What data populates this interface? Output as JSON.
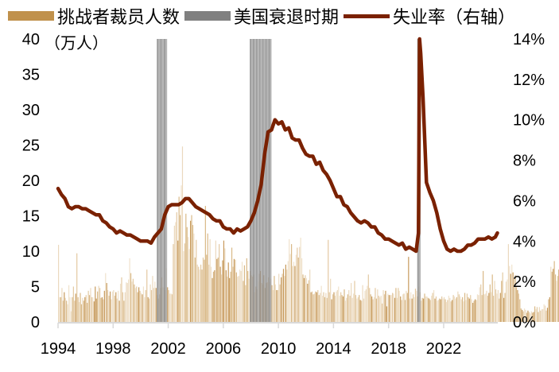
{
  "chart_data": {
    "type": "bar+line",
    "title": "",
    "legend": [
      {
        "label": "挑战者裁员人数",
        "kind": "bar",
        "color": "#C0914C"
      },
      {
        "label": "美国衰退时期",
        "kind": "band",
        "color": "#808080"
      },
      {
        "label": "失业率（右轴）",
        "kind": "line",
        "color": "#7A2100"
      }
    ],
    "left_axis": {
      "unit_label": "（万人）",
      "ticks": [
        0,
        5,
        10,
        15,
        20,
        25,
        30,
        35,
        40
      ],
      "ylim": [
        0,
        40
      ]
    },
    "right_axis": {
      "ticks": [
        "0%",
        "2%",
        "4%",
        "6%",
        "8%",
        "10%",
        "12%",
        "14%"
      ],
      "ylim": [
        0,
        14
      ]
    },
    "x_axis": {
      "ticks": [
        "1994",
        "1998",
        "2002",
        "2006",
        "2010",
        "2014",
        "2018",
        "2022"
      ],
      "range": [
        1994.0,
        2025.9
      ]
    },
    "recessions": [
      {
        "start": 2001.17,
        "end": 2001.92
      },
      {
        "start": 2007.92,
        "end": 2009.5
      },
      {
        "start": 2020.08,
        "end": 2020.33
      }
    ],
    "unemployment_rate": {
      "x": [
        1994.0,
        1994.25,
        1994.5,
        1994.75,
        1995.0,
        1995.25,
        1995.5,
        1995.75,
        1996.0,
        1996.25,
        1996.5,
        1996.75,
        1997.0,
        1997.25,
        1997.5,
        1997.75,
        1998.0,
        1998.25,
        1998.5,
        1998.75,
        1999.0,
        1999.25,
        1999.5,
        1999.75,
        2000.0,
        2000.25,
        2000.5,
        2000.75,
        2001.0,
        2001.25,
        2001.5,
        2001.75,
        2002.0,
        2002.25,
        2002.5,
        2002.75,
        2003.0,
        2003.25,
        2003.5,
        2003.75,
        2004.0,
        2004.25,
        2004.5,
        2004.75,
        2005.0,
        2005.25,
        2005.5,
        2005.75,
        2006.0,
        2006.25,
        2006.5,
        2006.75,
        2007.0,
        2007.25,
        2007.5,
        2007.75,
        2008.0,
        2008.25,
        2008.5,
        2008.75,
        2009.0,
        2009.25,
        2009.5,
        2009.75,
        2010.0,
        2010.25,
        2010.5,
        2010.75,
        2011.0,
        2011.25,
        2011.5,
        2011.75,
        2012.0,
        2012.25,
        2012.5,
        2012.75,
        2013.0,
        2013.25,
        2013.5,
        2013.75,
        2014.0,
        2014.25,
        2014.5,
        2014.75,
        2015.0,
        2015.25,
        2015.5,
        2015.75,
        2016.0,
        2016.25,
        2016.5,
        2016.75,
        2017.0,
        2017.25,
        2017.5,
        2017.75,
        2018.0,
        2018.25,
        2018.5,
        2018.75,
        2019.0,
        2019.25,
        2019.5,
        2019.75,
        2020.0,
        2020.17,
        2020.25,
        2020.33,
        2020.5,
        2020.75,
        2021.0,
        2021.25,
        2021.5,
        2021.75,
        2022.0,
        2022.25,
        2022.5,
        2022.75,
        2023.0,
        2023.25,
        2023.5,
        2023.75,
        2024.0,
        2024.25,
        2024.5,
        2024.75,
        2025.0,
        2025.25,
        2025.5,
        2025.75,
        2025.9
      ],
      "y": [
        6.6,
        6.3,
        6.1,
        5.7,
        5.6,
        5.7,
        5.7,
        5.6,
        5.6,
        5.5,
        5.4,
        5.3,
        5.3,
        5.0,
        4.9,
        4.7,
        4.6,
        4.4,
        4.5,
        4.4,
        4.3,
        4.3,
        4.2,
        4.1,
        4.0,
        4.0,
        4.0,
        3.9,
        4.2,
        4.4,
        4.6,
        5.3,
        5.7,
        5.8,
        5.8,
        5.8,
        5.9,
        6.1,
        6.1,
        5.9,
        5.7,
        5.6,
        5.5,
        5.4,
        5.3,
        5.1,
        5.0,
        5.0,
        4.7,
        4.6,
        4.6,
        4.4,
        4.6,
        4.5,
        4.6,
        4.7,
        5.0,
        5.4,
        6.0,
        6.8,
        8.3,
        9.4,
        9.5,
        10.0,
        9.8,
        9.9,
        9.5,
        9.6,
        9.1,
        9.0,
        9.0,
        8.6,
        8.3,
        8.2,
        8.2,
        7.8,
        7.9,
        7.5,
        7.3,
        7.0,
        6.6,
        6.2,
        6.2,
        5.8,
        5.7,
        5.4,
        5.2,
        5.0,
        4.9,
        5.0,
        4.9,
        4.7,
        4.7,
        4.4,
        4.3,
        4.1,
        4.1,
        4.0,
        3.9,
        3.8,
        3.9,
        3.6,
        3.7,
        3.6,
        3.5,
        4.4,
        14.7,
        13.3,
        11.1,
        6.9,
        6.4,
        6.0,
        5.4,
        4.6,
        4.0,
        3.6,
        3.5,
        3.6,
        3.5,
        3.5,
        3.6,
        3.8,
        3.8,
        3.9,
        4.1,
        4.1,
        4.1,
        4.2,
        4.1,
        4.2,
        4.4
      ]
    },
    "layoffs_monthly_10k": [
      10.9,
      3.5,
      3.5,
      4.8,
      3.0,
      4.2,
      3.4,
      3.0,
      2.5,
      5.2,
      3.5,
      1.5,
      3.5,
      5.0,
      3.0,
      4.0,
      9.7,
      3.5,
      2.8,
      4.1,
      2.5,
      3.4,
      3.0,
      3.5,
      3.8,
      2.7,
      4.4,
      3.8,
      4.8,
      3.5,
      3.5,
      2.9,
      5.0,
      3.3,
      4.3,
      5.1,
      4.8,
      3.4,
      3.5,
      3.2,
      4.4,
      6.9,
      5.5,
      4.5,
      3.7,
      4.3,
      3.2,
      4.3,
      4.5,
      3.7,
      4.2,
      3.3,
      4.4,
      3.0,
      5.4,
      6.3,
      4.2,
      3.0,
      4.2,
      5.6,
      5.5,
      6.0,
      9.0,
      6.9,
      5.7,
      6.1,
      5.3,
      4.8,
      5.0,
      4.2,
      4.9,
      4.4,
      4.1,
      3.9,
      5.0,
      3.5,
      4.5,
      7.4,
      3.5,
      3.3,
      5.3,
      4.5,
      6.5,
      4.8,
      5.7,
      4.8,
      3.8,
      3.3,
      3.9,
      4.8,
      6.3,
      4.9,
      4.8,
      4.5,
      7.6,
      4.9,
      4.5,
      4.0,
      4.0,
      3.9,
      11.0,
      13.6,
      14.1,
      15.5,
      11.5,
      17.7,
      15.1,
      19.3,
      24.8,
      10.0,
      11.1,
      15.3,
      13.4,
      12.0,
      10.3,
      14.3,
      15.1,
      13.7,
      12.5,
      9.1,
      11.6,
      8.1,
      7.8,
      7.4,
      8.1,
      7.4,
      9.1,
      8.8,
      16.4,
      9.5,
      12.5,
      8.1,
      11.7,
      7.8,
      6.2,
      7.1,
      7.3,
      11.5,
      8.9,
      9.1,
      11.0,
      7.8,
      6.7,
      8.7,
      11.5,
      10.4,
      7.3,
      6.4,
      8.4,
      6.2,
      7.1,
      10.5,
      7.8,
      8.9,
      8.8,
      7.0,
      6.4,
      6.5,
      7.4,
      7.2,
      8.5,
      5.8,
      8.0,
      5.2,
      9.0,
      7.2,
      6.1,
      7.2,
      6.6,
      6.4,
      6.7,
      4.2,
      5.0,
      4.6,
      5.7,
      6.8,
      7.2,
      5.5,
      5.3,
      6.6,
      4.8,
      5.5,
      5.6,
      6.3,
      5.7,
      6.1,
      5.2,
      4.5,
      6.5,
      5.3,
      4.5,
      4.5,
      6.8,
      5.3,
      6.3,
      6.8,
      7.5,
      6.5,
      8.1,
      7.4,
      8.6,
      11.7,
      9.6,
      11.0,
      7.9,
      8.5,
      7.9,
      9.5,
      10.5,
      9.1,
      10.6,
      11.9,
      9.0,
      6.7,
      6.2,
      6.6,
      6.2,
      5.4,
      5.9,
      7.4,
      4.2,
      4.3,
      3.9,
      4.0,
      4.3,
      4.2,
      4.5,
      3.8,
      4.1,
      5.1,
      3.7,
      4.2,
      3.5,
      4.1,
      3.4,
      11.6,
      4.2,
      6.1,
      3.2,
      3.9,
      4.2,
      3.7,
      4.3,
      4.5,
      5.0,
      3.7,
      4.2,
      3.8,
      3.6,
      4.6,
      3.0,
      3.4,
      3.9,
      4.5,
      3.7,
      5.5,
      3.4,
      4.0,
      5.8,
      3.8,
      3.3,
      3.5,
      3.8,
      3.1,
      3.0,
      5.2,
      3.3,
      4.4,
      4.6,
      5.1,
      6.7,
      4.8,
      3.9,
      3.6,
      3.2,
      3.5,
      4.8,
      3.3,
      4.6,
      3.7,
      3.5,
      3.7,
      2.6,
      4.5,
      3.9,
      4.4,
      2.2,
      4.0,
      3.8,
      3.8,
      3.8,
      4.1,
      4.0,
      3.4,
      4.8,
      3.4,
      4.8,
      4.4,
      3.6,
      3.1,
      3.9,
      4.0,
      3.1,
      4.4,
      4.1,
      9.2,
      3.3,
      4.2,
      3.3,
      3.9,
      3.5,
      4.7,
      4.4,
      3.6,
      5.0,
      4.2,
      3.0,
      3.4,
      3.3,
      4.0,
      3.6,
      3.6,
      3.4,
      3.3,
      3.1,
      3.7,
      4.1,
      4.5,
      3.3,
      3.6,
      3.0,
      3.1,
      3.3,
      3.2,
      3.6,
      3.3,
      3.5,
      3.2,
      2.8,
      3.1,
      3.7,
      3.4,
      2.9,
      3.1,
      3.8,
      3.6,
      3.3,
      3.5,
      4.3,
      3.9,
      3.6,
      3.2,
      3.5,
      2.9,
      4.1,
      3.1,
      4.0,
      3.5,
      3.3,
      3.8,
      3.2,
      2.7,
      3.0,
      3.2,
      3.1,
      3.9,
      3.8,
      4.9,
      5.3,
      3.8,
      7.2,
      3.9,
      4.0,
      4.4,
      3.7,
      4.1,
      5.3,
      4.2,
      6.7,
      3.7,
      5.8,
      4.6,
      4.0,
      4.5,
      3.3,
      4.1,
      5.8,
      7.0,
      3.4,
      4.1,
      5.7,
      6.0,
      11.0,
      7.9,
      6.8,
      8.1,
      7.0,
      6.2,
      6.6,
      4.9,
      4.5,
      4.0,
      3.2,
      1.9,
      1.7,
      1.5,
      1.9,
      1.7,
      1.3,
      1.6,
      1.4,
      1.2,
      1.5,
      1.3,
      1.4,
      2.2,
      1.8,
      2.1,
      1.4,
      2.1,
      1.6,
      1.8,
      1.8,
      2.5,
      2.3,
      1.6,
      2.0,
      3.2,
      3.5,
      7.8,
      7.1,
      7.5,
      8.6,
      6.7,
      5.8,
      6.5,
      7.4,
      6.0,
      4.0,
      4.5,
      3.7,
      4.5,
      6.3,
      6.7,
      4.9,
      6.5,
      7.6,
      6.5,
      5.4,
      6.0,
      3.7,
      5.0,
      4.8,
      5.6,
      4.1,
      8.2,
      6.1,
      4.6,
      3.4,
      3.8,
      4.9,
      7.6,
      9.4,
      6.9,
      5.4,
      5.2,
      7.1,
      6.7,
      4.0,
      5.0,
      6.9,
      17.2,
      27.6,
      10.5,
      9.4,
      5.9,
      9.3,
      8.5,
      4.9,
      6.0,
      6.3,
      15.3
    ]
  }
}
